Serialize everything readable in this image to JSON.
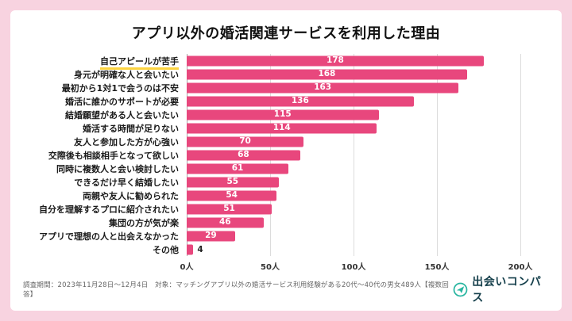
{
  "title": "アプリ以外の婚活関連サービスを利用した理由",
  "chart_data": {
    "type": "bar",
    "orientation": "horizontal",
    "title": "アプリ以外の婚活関連サービスを利用した理由",
    "categories": [
      "自己アピールが苦手",
      "身元が明確な人と会いたい",
      "最初から1対1で会うのは不安",
      "婚活に誰かのサポートが必要",
      "結婚願望がある人と会いたい",
      "婚活する時間が足りない",
      "友人と参加した方が心強い",
      "交際後も相談相手となって欲しい",
      "同時に複数人と会い検討したい",
      "できるだけ早く結婚したい",
      "両親や友人に勧められた",
      "自分を理解するプロに紹介されたい",
      "集団の方が気が楽",
      "アプリで理想の人と出会えなかった",
      "その他"
    ],
    "values": [
      178,
      168,
      163,
      136,
      115,
      114,
      70,
      68,
      61,
      55,
      54,
      51,
      46,
      29,
      4
    ],
    "highlighted_category_index": 0,
    "xlim": [
      0,
      200
    ],
    "xticks": [
      "0人",
      "50人",
      "100人",
      "150人",
      "200人"
    ],
    "grid": true,
    "bar_color": "#e8477d",
    "value_label_color_inside": "#ffffff",
    "value_label_color_outside": "#222222",
    "highlight_underline_color": "#fcd33f"
  },
  "footer": {
    "survey_note": "調査期間：2023年11月28日〜12月4日　対象：マッチングアプリ以外の婚活サービス利用経験がある20代〜40代の男女489人【複数回答】",
    "logo_text": "出会いコンパス"
  },
  "colors": {
    "page_background": "#f8d3e0",
    "card_background": "#ffffff",
    "logo_accent": "#27b5a0",
    "logo_text": "#16404c"
  }
}
